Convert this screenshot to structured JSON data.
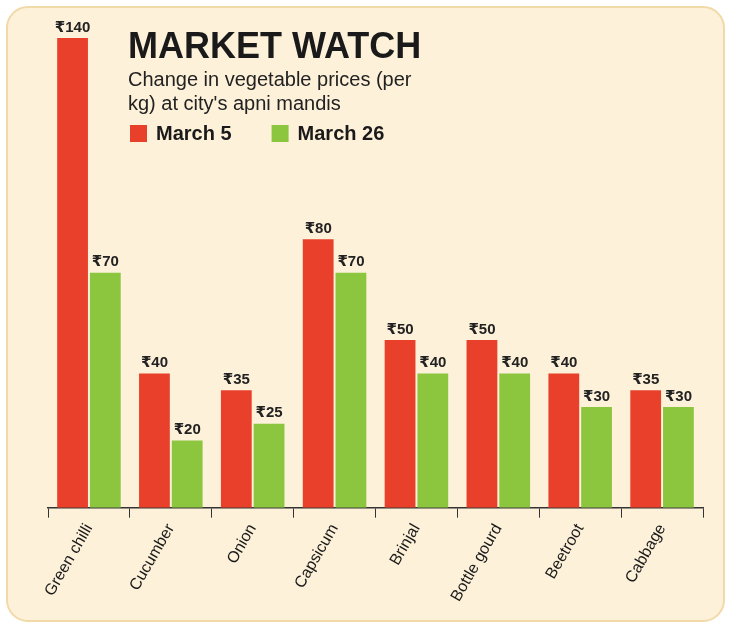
{
  "chart_data": {
    "type": "bar",
    "title": "MARKET WATCH",
    "subtitle": "Change in vegetable prices (per kg) at city's apni mandis",
    "categories": [
      "Green chilli",
      "Cucumber",
      "Onion",
      "Capsicum",
      "Brinjal",
      "Bottle gourd",
      "Beetroot",
      "Cabbage"
    ],
    "series": [
      {
        "name": "March 5",
        "color": "#e8402a",
        "values": [
          140,
          40,
          35,
          80,
          50,
          50,
          40,
          35
        ],
        "value_labels": [
          "₹140",
          "₹40",
          "₹35",
          "₹80",
          "₹50",
          "₹50",
          "₹40",
          "₹35"
        ]
      },
      {
        "name": "March 26",
        "color": "#8cc63f",
        "values": [
          70,
          20,
          25,
          70,
          40,
          40,
          30,
          30
        ],
        "value_labels": [
          "₹70",
          "₹20",
          "₹25",
          "₹70",
          "₹40",
          "₹40",
          "₹30",
          "₹30"
        ]
      }
    ],
    "ylim": [
      0,
      140
    ],
    "grid": false,
    "legend": "top",
    "data_labels": true,
    "tick_labels": "x"
  }
}
